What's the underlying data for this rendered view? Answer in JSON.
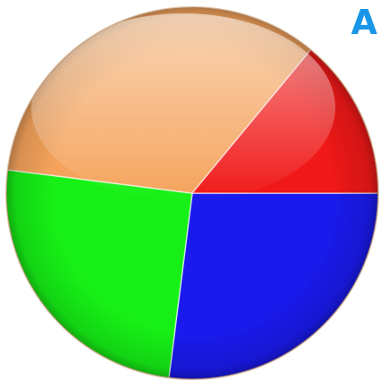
{
  "panel_label": "A",
  "chart_data": {
    "type": "pie",
    "title": "",
    "slices": [
      {
        "value": 27,
        "color": "#1a1aee"
      },
      {
        "value": 25,
        "color": "#16f016"
      },
      {
        "value": 34,
        "color": "#f5a35c"
      },
      {
        "value": 14,
        "color": "#f01818"
      }
    ],
    "start_angle_deg": 0,
    "direction": "clockwise",
    "style": "glossy 3D"
  }
}
